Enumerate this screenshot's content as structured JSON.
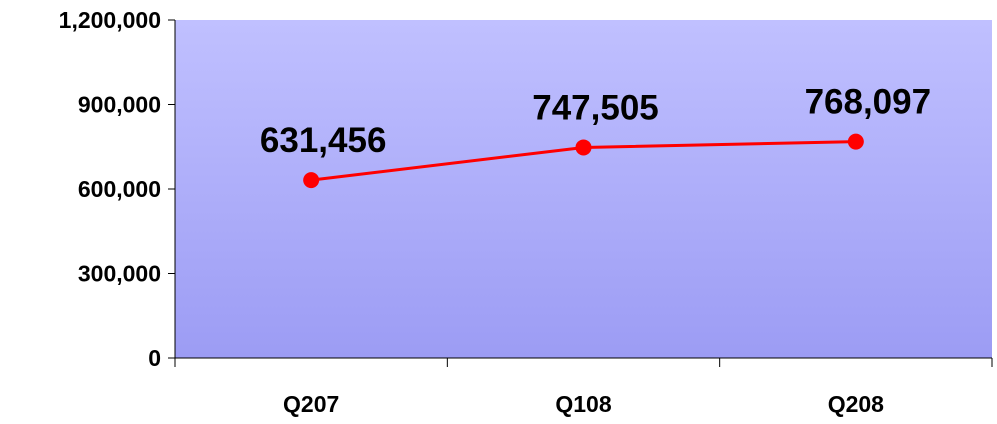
{
  "chart_data": {
    "type": "line",
    "categories": [
      "Q207",
      "Q108",
      "Q208"
    ],
    "series": [
      {
        "values": [
          631456,
          747505,
          768097
        ],
        "color": "#ff0000"
      }
    ],
    "data_labels": [
      "631,456",
      "747,505",
      "768,097"
    ],
    "y_ticks": [
      0,
      300000,
      600000,
      900000,
      1200000
    ],
    "y_tick_labels": [
      "0",
      "300,000",
      "600,000",
      "900,000",
      "1,200,000"
    ],
    "ylim": [
      0,
      1200000
    ],
    "grid": false,
    "legend": "none",
    "background_gradient": [
      "#c0c0ff",
      "#9c9cf4"
    ]
  }
}
